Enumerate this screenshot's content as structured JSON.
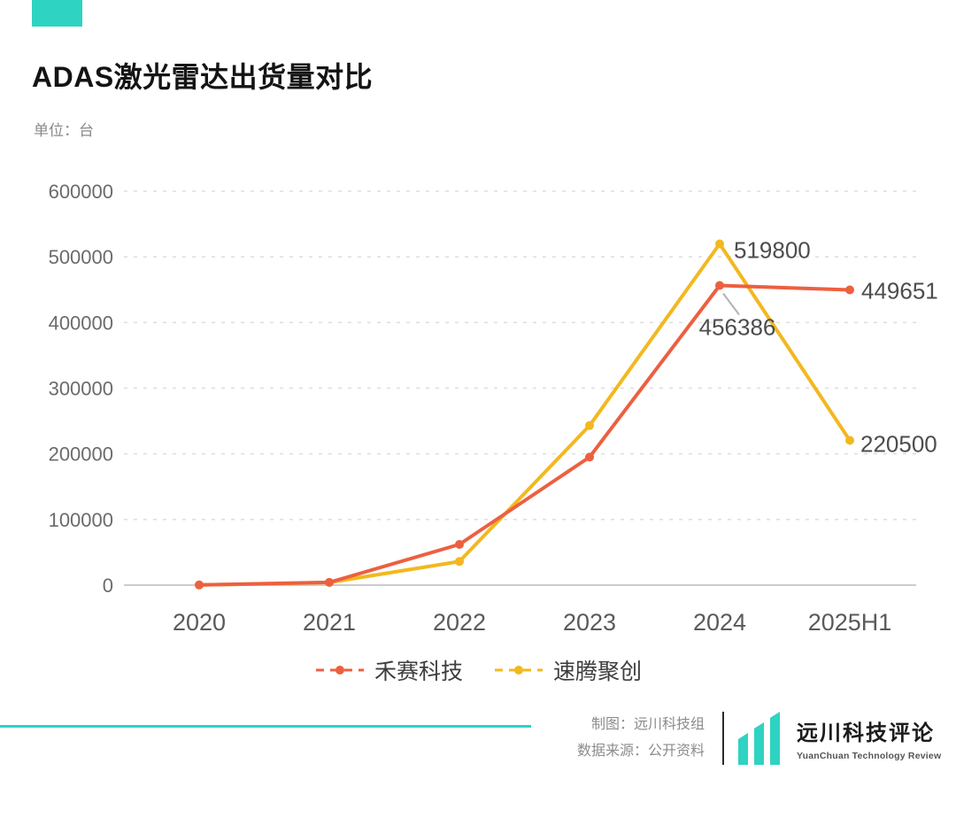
{
  "colors": {
    "accent": "#2ed3c1",
    "grid": "#dddddd",
    "value_label": "#4d4d4d"
  },
  "header": {
    "title": "ADAS激光雷达出货量对比",
    "unit_label": "单位：台"
  },
  "chart_data": {
    "type": "line",
    "categories": [
      "2020",
      "2021",
      "2022",
      "2023",
      "2024",
      "2025H1"
    ],
    "series": [
      {
        "name": "禾赛科技",
        "color": "#ec6040",
        "values": [
          300,
          4200,
          62000,
          195000,
          456386,
          449651
        ],
        "labeled": [
          4,
          5
        ]
      },
      {
        "name": "速腾聚创",
        "color": "#f3b81f",
        "values": [
          200,
          4000,
          36000,
          243000,
          519800,
          220500
        ],
        "labeled": [
          4,
          5
        ]
      }
    ],
    "title": "ADAS激光雷达出货量对比",
    "xlabel": "",
    "ylabel": "单位：台",
    "ylim": [
      0,
      600000
    ],
    "ytick_step": 100000,
    "grid": "horizontal-dashed",
    "legend_position": "bottom"
  },
  "footer": {
    "credit_line1": "制图：远川科技组",
    "credit_line2": "数据来源：公开资料",
    "logo_text": "远川科技评论",
    "logo_subtext": "YuanChuan Technology Review"
  }
}
